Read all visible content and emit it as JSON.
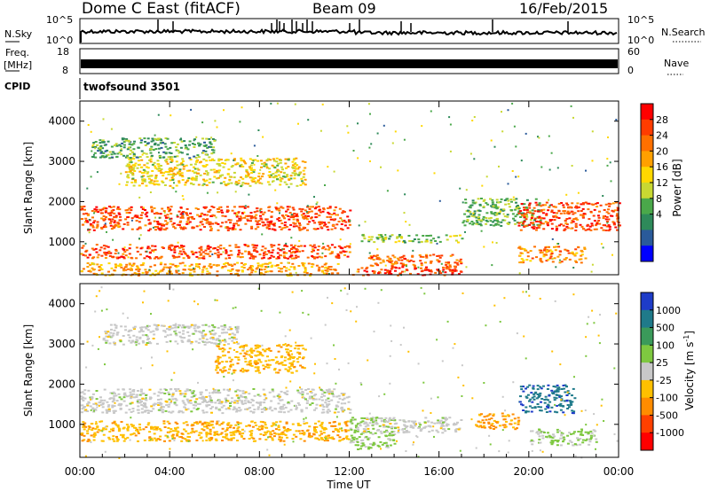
{
  "header": {
    "station": "Dome C East (fitACF)",
    "beam": "Beam 09",
    "date": "16/Feb/2015"
  },
  "noise_panel": {
    "left_label": "N.Sky",
    "right_label": "N.Search",
    "ticks": [
      "10^5",
      "10^0"
    ],
    "right_ticks": [
      "10^5",
      "10^0"
    ]
  },
  "freq_panel": {
    "left_label_1": "Freq.",
    "left_label_2": "[MHz]",
    "left_ticks": [
      "18",
      "8"
    ],
    "right_label": "Nave",
    "right_ticks": [
      "60",
      "0"
    ]
  },
  "cpid": {
    "label": "CPID",
    "value": "twofsound 3501"
  },
  "power_panel": {
    "ylabel": "Slant Range [km]",
    "yticks": [
      "4000",
      "3000",
      "2000",
      "1000"
    ],
    "colorbar_label": "Power [dB]",
    "colorbar_ticks": [
      "28",
      "24",
      "20",
      "16",
      "12",
      "8",
      "4"
    ],
    "colorbar_colors": [
      "#ff0000",
      "#ff3c00",
      "#ff7000",
      "#ffa000",
      "#ffd800",
      "#c8d832",
      "#4aa84a",
      "#2e8a5a",
      "#2a5a9a",
      "#0000ff"
    ]
  },
  "velocity_panel": {
    "ylabel": "Slant Range [km]",
    "yticks": [
      "4000",
      "3000",
      "2000",
      "1000"
    ],
    "colorbar_label": "Velocity [m s",
    "colorbar_label_sup": "-1",
    "colorbar_label_end": "]",
    "colorbar_ticks": [
      "1000",
      "500",
      "100",
      "25",
      "-25",
      "-100",
      "-500",
      "-1000"
    ],
    "colorbar_colors": [
      "#1e3cc8",
      "#1f7a8a",
      "#3a9a5a",
      "#7ec840",
      "#c8c8c8",
      "#ffc000",
      "#ff8c00",
      "#ff4000",
      "#ff0000"
    ]
  },
  "xaxis": {
    "label": "Time UT",
    "ticks": [
      "00:00",
      "04:00",
      "08:00",
      "12:00",
      "16:00",
      "20:00",
      "00:00"
    ]
  },
  "chart_data": [
    {
      "type": "heatmap",
      "title": "Dome C East (fitACF)",
      "xlabel": "Time UT",
      "ylabel": "Slant Range [km]",
      "xlim": [
        "00:00",
        "24:00"
      ],
      "ylim": [
        180,
        4500
      ],
      "colorbar": "Power [dB]",
      "zlim": [
        0,
        30
      ],
      "bands": [
        {
          "t_start_h": 0.0,
          "t_end_h": 12.0,
          "range_km": [
            1300,
            1900
          ],
          "value_db": 26
        },
        {
          "t_start_h": 0.0,
          "t_end_h": 12.0,
          "range_km": [
            600,
            950
          ],
          "value_db": 26
        },
        {
          "t_start_h": 0.0,
          "t_end_h": 11.5,
          "range_km": [
            180,
            500
          ],
          "value_db": 20
        },
        {
          "t_start_h": 2.0,
          "t_end_h": 10.0,
          "range_km": [
            2400,
            3100
          ],
          "value_db": 16
        },
        {
          "t_start_h": 0.5,
          "t_end_h": 6.0,
          "range_km": [
            3100,
            3600
          ],
          "value_db": 9
        },
        {
          "t_start_h": 12.0,
          "t_end_h": 17.0,
          "range_km": [
            180,
            400
          ],
          "value_db": 28
        },
        {
          "t_start_h": 12.8,
          "t_end_h": 17.0,
          "range_km": [
            400,
            700
          ],
          "value_db": 24
        },
        {
          "t_start_h": 12.5,
          "t_end_h": 17.0,
          "range_km": [
            1000,
            1200
          ],
          "value_db": 12
        },
        {
          "t_start_h": 17.0,
          "t_end_h": 20.5,
          "range_km": [
            1400,
            2100
          ],
          "value_db": 10
        },
        {
          "t_start_h": 19.5,
          "t_end_h": 24.0,
          "range_km": [
            1300,
            2000
          ],
          "value_db": 26
        },
        {
          "t_start_h": 19.5,
          "t_end_h": 22.5,
          "range_km": [
            500,
            900
          ],
          "value_db": 22
        }
      ]
    },
    {
      "type": "heatmap",
      "xlabel": "Time UT",
      "ylabel": "Slant Range [km]",
      "xlim": [
        "00:00",
        "24:00"
      ],
      "ylim": [
        180,
        4500
      ],
      "colorbar": "Velocity [m s-1]",
      "zlim": [
        -1000,
        1000
      ],
      "bands": [
        {
          "t_start_h": 0.0,
          "t_end_h": 12.0,
          "range_km": [
            1300,
            1900
          ],
          "value_ms": 0
        },
        {
          "t_start_h": 0.0,
          "t_end_h": 12.0,
          "range_km": [
            600,
            1100
          ],
          "value_ms": -300
        },
        {
          "t_start_h": 6.0,
          "t_end_h": 10.0,
          "range_km": [
            2300,
            3000
          ],
          "value_ms": -300
        },
        {
          "t_start_h": 1.0,
          "t_end_h": 7.0,
          "range_km": [
            3000,
            3500
          ],
          "value_ms": 0
        },
        {
          "t_start_h": 12.0,
          "t_end_h": 14.0,
          "range_km": [
            400,
            1200
          ],
          "value_ms": 200
        },
        {
          "t_start_h": 12.5,
          "t_end_h": 17.0,
          "range_km": [
            800,
            1200
          ],
          "value_ms": 0
        },
        {
          "t_start_h": 17.5,
          "t_end_h": 19.5,
          "range_km": [
            900,
            1300
          ],
          "value_ms": -400
        },
        {
          "t_start_h": 19.5,
          "t_end_h": 22.0,
          "range_km": [
            1300,
            2000
          ],
          "value_ms": 800
        },
        {
          "t_start_h": 20.0,
          "t_end_h": 23.0,
          "range_km": [
            500,
            900
          ],
          "value_ms": 150
        }
      ]
    }
  ]
}
